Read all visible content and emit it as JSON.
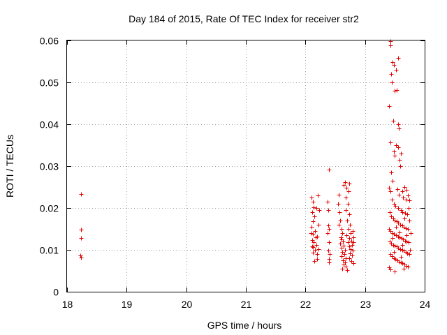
{
  "chart_data": {
    "type": "scatter",
    "title": "Day 184 of 2015, Rate Of TEC Index for receiver str2",
    "xlabel": "GPS time / hours",
    "ylabel": "ROTI / TECUs",
    "xlim": [
      18,
      24
    ],
    "ylim": [
      0,
      0.06
    ],
    "xticks": [
      18,
      19,
      20,
      21,
      22,
      23,
      24
    ],
    "yticks": [
      0,
      0.01,
      0.02,
      0.03,
      0.04,
      0.05,
      0.06
    ],
    "ytick_labels": [
      "0",
      "0.01",
      "0.02",
      "0.03",
      "0.04",
      "0.05",
      "0.06"
    ],
    "grid": true,
    "marker": "+",
    "marker_color": "#e00000",
    "series": [
      {
        "name": "str2",
        "points": [
          [
            18.24,
            0.0233
          ],
          [
            18.23,
            0.0148
          ],
          [
            18.24,
            0.0128
          ],
          [
            18.22,
            0.0087
          ],
          [
            18.24,
            0.0081
          ],
          [
            22.1,
            0.0225
          ],
          [
            22.12,
            0.0215
          ],
          [
            22.14,
            0.0202
          ],
          [
            22.11,
            0.019
          ],
          [
            22.15,
            0.018
          ],
          [
            22.13,
            0.0168
          ],
          [
            22.1,
            0.0155
          ],
          [
            22.16,
            0.0145
          ],
          [
            22.12,
            0.0138
          ],
          [
            22.17,
            0.013
          ],
          [
            22.11,
            0.0124
          ],
          [
            22.14,
            0.0118
          ],
          [
            22.18,
            0.0112
          ],
          [
            22.12,
            0.0106
          ],
          [
            22.16,
            0.01
          ],
          [
            22.13,
            0.0094
          ],
          [
            22.19,
            0.009
          ],
          [
            22.11,
            0.0108
          ],
          [
            22.2,
            0.0132
          ],
          [
            22.22,
            0.016
          ],
          [
            22.18,
            0.02
          ],
          [
            22.21,
            0.023
          ],
          [
            22.15,
            0.0073
          ],
          [
            22.19,
            0.0078
          ],
          [
            22.22,
            0.0102
          ],
          [
            22.23,
            0.0195
          ],
          [
            22.09,
            0.014
          ],
          [
            22.39,
            0.0292
          ],
          [
            22.37,
            0.0215
          ],
          [
            22.38,
            0.0195
          ],
          [
            22.38,
            0.0158
          ],
          [
            22.39,
            0.015
          ],
          [
            22.37,
            0.014
          ],
          [
            22.4,
            0.0118
          ],
          [
            22.38,
            0.0098
          ],
          [
            22.41,
            0.009
          ],
          [
            22.39,
            0.0078
          ],
          [
            22.4,
            0.007
          ],
          [
            22.56,
            0.0232
          ],
          [
            22.55,
            0.021
          ],
          [
            22.57,
            0.019
          ],
          [
            22.58,
            0.017
          ],
          [
            22.56,
            0.016
          ],
          [
            22.6,
            0.015
          ],
          [
            22.62,
            0.014
          ],
          [
            22.59,
            0.013
          ],
          [
            22.61,
            0.0125
          ],
          [
            22.63,
            0.012
          ],
          [
            22.58,
            0.0115
          ],
          [
            22.64,
            0.011
          ],
          [
            22.6,
            0.0105
          ],
          [
            22.66,
            0.01
          ],
          [
            22.62,
            0.0095
          ],
          [
            22.65,
            0.009
          ],
          [
            22.61,
            0.0085
          ],
          [
            22.67,
            0.008
          ],
          [
            22.63,
            0.0075
          ],
          [
            22.66,
            0.007
          ],
          [
            22.64,
            0.0065
          ],
          [
            22.68,
            0.006
          ],
          [
            22.62,
            0.0055
          ],
          [
            22.7,
            0.0052
          ],
          [
            22.64,
            0.0255
          ],
          [
            22.66,
            0.0262
          ],
          [
            22.69,
            0.0248
          ],
          [
            22.72,
            0.024
          ],
          [
            22.74,
            0.0258
          ],
          [
            22.67,
            0.0225
          ],
          [
            22.71,
            0.021
          ],
          [
            22.68,
            0.0195
          ],
          [
            22.73,
            0.0185
          ],
          [
            22.7,
            0.017
          ],
          [
            22.75,
            0.016
          ],
          [
            22.72,
            0.015
          ],
          [
            22.76,
            0.014
          ],
          [
            22.69,
            0.0135
          ],
          [
            22.74,
            0.0128
          ],
          [
            22.77,
            0.0122
          ],
          [
            22.71,
            0.0118
          ],
          [
            22.78,
            0.0112
          ],
          [
            22.73,
            0.0108
          ],
          [
            22.76,
            0.0102
          ],
          [
            22.79,
            0.0098
          ],
          [
            22.75,
            0.0092
          ],
          [
            22.78,
            0.0086
          ],
          [
            22.74,
            0.008
          ],
          [
            22.77,
            0.0074
          ],
          [
            22.8,
            0.0068
          ],
          [
            22.81,
            0.013
          ],
          [
            22.79,
            0.0145
          ],
          [
            22.8,
            0.0118
          ],
          [
            23.42,
            0.0598
          ],
          [
            23.43,
            0.0588
          ],
          [
            23.46,
            0.0548
          ],
          [
            23.48,
            0.0542
          ],
          [
            23.55,
            0.0558
          ],
          [
            23.52,
            0.053
          ],
          [
            23.44,
            0.052
          ],
          [
            23.45,
            0.05
          ],
          [
            23.5,
            0.048
          ],
          [
            23.53,
            0.0482
          ],
          [
            23.4,
            0.0443
          ],
          [
            23.47,
            0.0408
          ],
          [
            23.55,
            0.04
          ],
          [
            23.57,
            0.039
          ],
          [
            23.42,
            0.0356
          ],
          [
            23.52,
            0.035
          ],
          [
            23.56,
            0.0345
          ],
          [
            23.48,
            0.0335
          ],
          [
            23.5,
            0.0325
          ],
          [
            23.6,
            0.033
          ],
          [
            23.58,
            0.0315
          ],
          [
            23.59,
            0.03
          ],
          [
            23.44,
            0.0285
          ],
          [
            23.46,
            0.0265
          ],
          [
            23.4,
            0.0248
          ],
          [
            23.42,
            0.024
          ],
          [
            23.54,
            0.0245
          ],
          [
            23.57,
            0.0232
          ],
          [
            23.62,
            0.024
          ],
          [
            23.66,
            0.025
          ],
          [
            23.7,
            0.0243
          ],
          [
            23.72,
            0.023
          ],
          [
            23.64,
            0.0225
          ],
          [
            23.68,
            0.022
          ],
          [
            23.74,
            0.0218
          ],
          [
            23.45,
            0.022
          ],
          [
            23.48,
            0.021
          ],
          [
            23.51,
            0.0205
          ],
          [
            23.55,
            0.02
          ],
          [
            23.6,
            0.0195
          ],
          [
            23.63,
            0.019
          ],
          [
            23.67,
            0.0188
          ],
          [
            23.71,
            0.0185
          ],
          [
            23.41,
            0.019
          ],
          [
            23.44,
            0.018
          ],
          [
            23.47,
            0.0175
          ],
          [
            23.5,
            0.017
          ],
          [
            23.53,
            0.0168
          ],
          [
            23.56,
            0.0165
          ],
          [
            23.59,
            0.016
          ],
          [
            23.62,
            0.0158
          ],
          [
            23.65,
            0.0155
          ],
          [
            23.68,
            0.0152
          ],
          [
            23.72,
            0.015
          ],
          [
            23.4,
            0.015
          ],
          [
            23.43,
            0.0145
          ],
          [
            23.46,
            0.014
          ],
          [
            23.49,
            0.0138
          ],
          [
            23.52,
            0.0135
          ],
          [
            23.55,
            0.0132
          ],
          [
            23.58,
            0.013
          ],
          [
            23.61,
            0.0128
          ],
          [
            23.64,
            0.0125
          ],
          [
            23.67,
            0.0122
          ],
          [
            23.7,
            0.012
          ],
          [
            23.73,
            0.0118
          ],
          [
            23.41,
            0.012
          ],
          [
            23.44,
            0.0115
          ],
          [
            23.47,
            0.0112
          ],
          [
            23.5,
            0.011
          ],
          [
            23.53,
            0.0108
          ],
          [
            23.56,
            0.0105
          ],
          [
            23.59,
            0.0102
          ],
          [
            23.62,
            0.01
          ],
          [
            23.65,
            0.0098
          ],
          [
            23.68,
            0.0095
          ],
          [
            23.71,
            0.0092
          ],
          [
            23.74,
            0.009
          ],
          [
            23.42,
            0.009
          ],
          [
            23.45,
            0.0085
          ],
          [
            23.48,
            0.008
          ],
          [
            23.51,
            0.0078
          ],
          [
            23.54,
            0.0075
          ],
          [
            23.57,
            0.0072
          ],
          [
            23.6,
            0.007
          ],
          [
            23.63,
            0.0068
          ],
          [
            23.66,
            0.0065
          ],
          [
            23.69,
            0.0062
          ],
          [
            23.72,
            0.006
          ],
          [
            23.4,
            0.0058
          ],
          [
            23.42,
            0.0053
          ],
          [
            23.5,
            0.0048
          ],
          [
            23.65,
            0.0055
          ],
          [
            23.75,
            0.01
          ],
          [
            23.76,
            0.014
          ],
          [
            23.74,
            0.017
          ],
          [
            23.73,
            0.02
          ],
          [
            23.52,
            0.0155
          ],
          [
            23.46,
            0.0128
          ],
          [
            23.58,
            0.0142
          ],
          [
            23.63,
            0.0112
          ],
          [
            23.69,
            0.0135
          ],
          [
            23.6,
            0.0083
          ],
          [
            23.66,
            0.0175
          ],
          [
            23.49,
            0.0095
          ]
        ]
      }
    ]
  }
}
